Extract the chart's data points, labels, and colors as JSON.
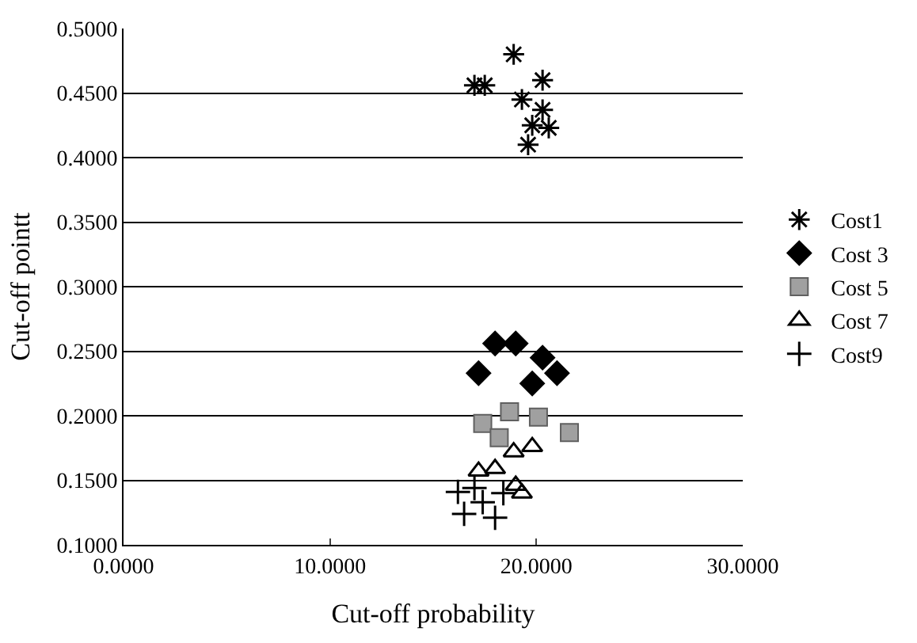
{
  "chart_data": {
    "type": "scatter",
    "xlabel": "Cut-off probability",
    "ylabel": "Cut-off pointt",
    "xlim": [
      0,
      30
    ],
    "xticks": [
      {
        "value": 0,
        "label": "0.0000"
      },
      {
        "value": 10,
        "label": "10.0000"
      },
      {
        "value": 20,
        "label": "20.0000"
      },
      {
        "value": 30,
        "label": "30.0000"
      }
    ],
    "ylim": [
      0.1,
      0.5
    ],
    "yticks": [
      {
        "value": 0.1,
        "label": "0.1000"
      },
      {
        "value": 0.15,
        "label": "0.1500"
      },
      {
        "value": 0.2,
        "label": "0.2000"
      },
      {
        "value": 0.25,
        "label": "0.2500"
      },
      {
        "value": 0.3,
        "label": "0.3000"
      },
      {
        "value": 0.35,
        "label": "0.3500"
      },
      {
        "value": 0.4,
        "label": "0.4000"
      },
      {
        "value": 0.45,
        "label": "0.4500"
      },
      {
        "value": 0.5,
        "label": "0.5000"
      }
    ],
    "grid": "y",
    "legend": "right",
    "series": [
      {
        "name": "Cost1",
        "color": "#000000",
        "marker": "cross",
        "x": [
          17.0,
          17.5,
          18.9,
          19.3,
          20.3,
          20.3,
          19.8,
          20.6,
          19.6
        ],
        "values": [
          0.456,
          0.456,
          0.48,
          0.445,
          0.46,
          0.437,
          0.425,
          0.423,
          0.41
        ]
      },
      {
        "name": "Cost 3",
        "color": "#000000",
        "marker": "diamond",
        "x": [
          18.0,
          19.0,
          17.2,
          20.3,
          19.8,
          21.0
        ],
        "values": [
          0.256,
          0.256,
          0.233,
          0.245,
          0.225,
          0.233
        ]
      },
      {
        "name": "Cost 5",
        "color": "#a0a0a0",
        "marker": "square",
        "x": [
          17.4,
          18.7,
          20.1,
          21.6,
          18.2
        ],
        "values": [
          0.194,
          0.203,
          0.199,
          0.187,
          0.183
        ]
      },
      {
        "name": "Cost 7",
        "color": "#000000",
        "marker": "triangle",
        "x": [
          18.9,
          19.8,
          17.2,
          18.0,
          19.0,
          19.3
        ],
        "values": [
          0.172,
          0.176,
          0.157,
          0.159,
          0.146,
          0.14
        ]
      },
      {
        "name": "Cost9",
        "color": "#000000",
        "marker": "cross",
        "x": [
          16.2,
          16.5,
          17.4,
          18.0,
          18.4,
          17.0
        ],
        "values": [
          0.141,
          0.124,
          0.133,
          0.121,
          0.14,
          0.144
        ]
      }
    ]
  }
}
